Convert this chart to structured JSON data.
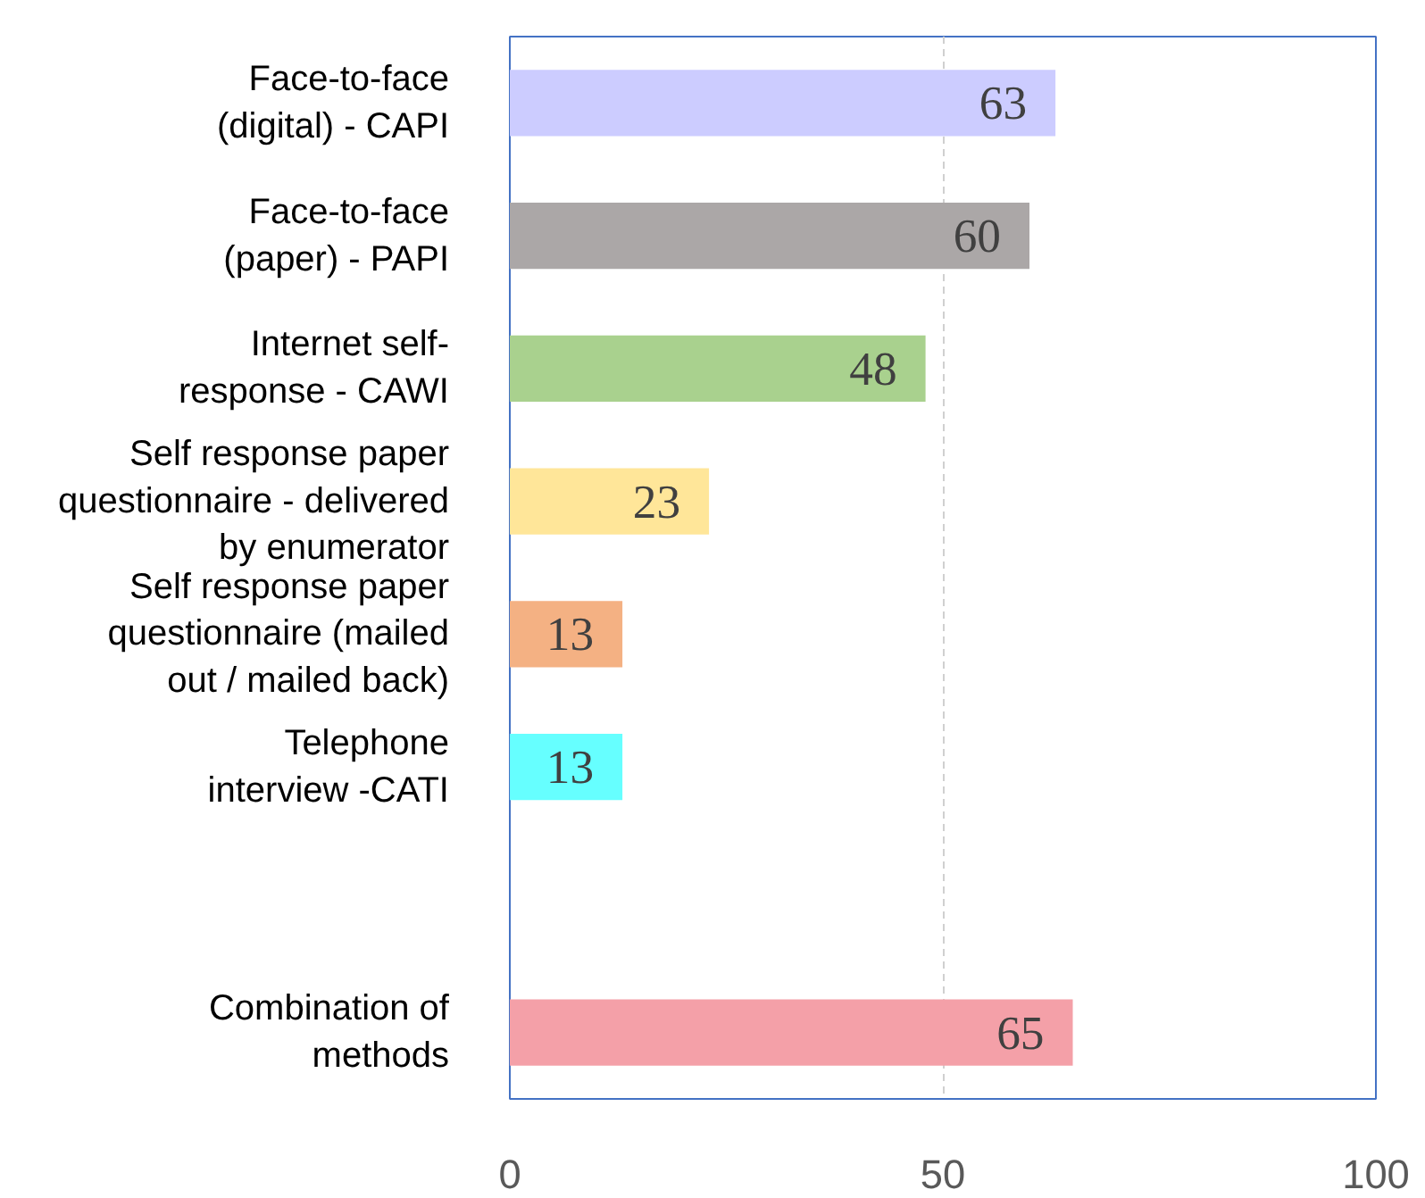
{
  "chart_data": {
    "type": "bar",
    "orientation": "horizontal",
    "categories": [
      "Face-to-face\n(digital) - CAPI",
      "Face-to-face\n(paper) - PAPI",
      "Internet self-\nresponse - CAWI",
      "Self response paper\nquestionnaire - delivered\nby enumerator",
      "Self response paper\nquestionnaire (mailed\nout / mailed back)",
      "Telephone\ninterview -CATI",
      null,
      "Combination of\nmethods"
    ],
    "values": [
      63,
      60,
      48,
      23,
      13,
      13,
      null,
      65
    ],
    "colors": [
      "#ccccff",
      "#aba7a7",
      "#a9d18e",
      "#ffe699",
      "#f4b183",
      "#66ffff",
      null,
      "#f4a0a8"
    ],
    "xlim": [
      0,
      100
    ],
    "xticks": [
      0,
      50,
      100
    ],
    "grid": "x",
    "data_labels": true
  }
}
